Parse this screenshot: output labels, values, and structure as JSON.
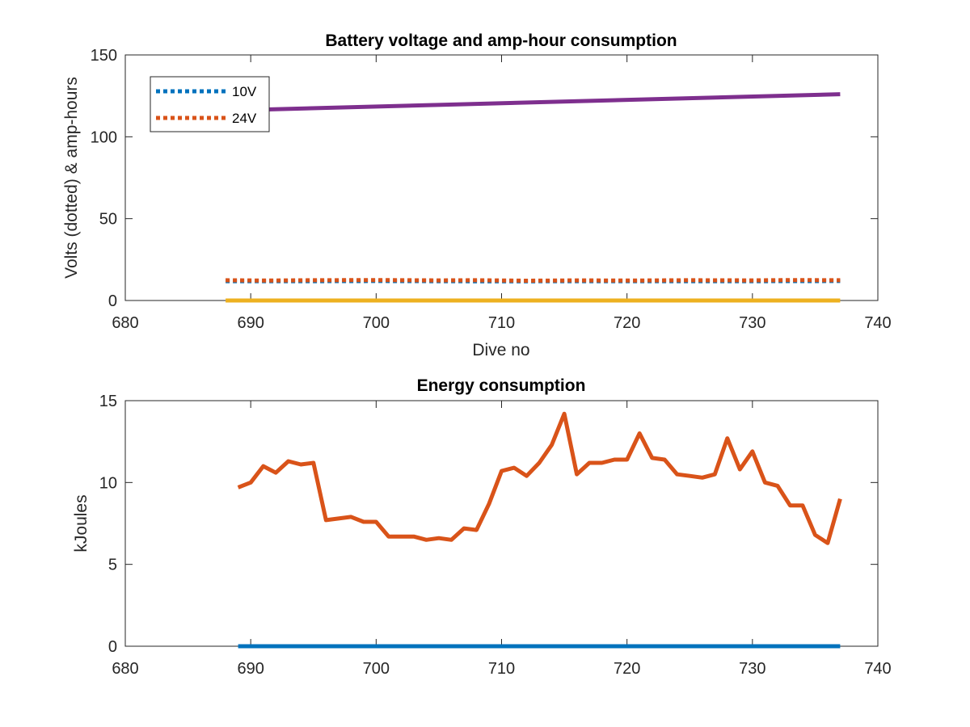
{
  "chart_data": [
    {
      "type": "line",
      "title": "Battery voltage and amp-hour consumption",
      "xlabel": "Dive no",
      "ylabel": "Volts (dotted) & amp-hours",
      "xlim": [
        680,
        740
      ],
      "ylim": [
        0,
        150
      ],
      "xticks": [
        680,
        690,
        700,
        710,
        720,
        730,
        740
      ],
      "yticks": [
        0,
        50,
        100,
        150
      ],
      "legend": {
        "placement": "top-left",
        "entries": [
          "10V",
          "24V"
        ]
      },
      "series": [
        {
          "name": "10V",
          "style": "dotted",
          "color": "#0072BD",
          "x": [
            688,
            695,
            700,
            705,
            710,
            715,
            720,
            725,
            730,
            737
          ],
          "y": [
            11.8,
            11.8,
            11.9,
            11.8,
            11.7,
            11.8,
            11.8,
            11.8,
            11.8,
            11.9
          ]
        },
        {
          "name": "24V",
          "style": "dotted",
          "color": "#D95319",
          "x": [
            688,
            691,
            695,
            700,
            705,
            708,
            712,
            716,
            720,
            725,
            730,
            733,
            737
          ],
          "y": [
            12.4,
            12.2,
            12.4,
            12.5,
            12.3,
            12.4,
            12.1,
            12.3,
            12.2,
            12.4,
            12.3,
            12.5,
            12.4
          ]
        },
        {
          "style": "solid",
          "color": "#7E2F8E",
          "x": [
            688,
            737
          ],
          "y": [
            116,
            126
          ]
        },
        {
          "style": "solid",
          "color": "#EDB120",
          "x": [
            688,
            737
          ],
          "y": [
            0,
            0
          ]
        }
      ]
    },
    {
      "type": "line",
      "title": "Energy consumption",
      "xlabel": "",
      "ylabel": "kJoules",
      "xlim": [
        680,
        740
      ],
      "ylim": [
        0,
        15
      ],
      "xticks": [
        680,
        690,
        700,
        710,
        720,
        730,
        740
      ],
      "yticks": [
        0,
        5,
        10,
        15
      ],
      "series": [
        {
          "style": "solid",
          "color": "#D95319",
          "x": [
            689,
            690,
            691,
            692,
            693,
            694,
            695,
            696,
            697,
            698,
            699,
            700,
            701,
            702,
            703,
            704,
            705,
            706,
            707,
            708,
            709,
            710,
            711,
            712,
            713,
            714,
            715,
            716,
            717,
            718,
            719,
            720,
            721,
            722,
            723,
            724,
            725,
            726,
            727,
            728,
            729,
            730,
            731,
            732,
            733,
            734,
            735,
            736,
            737
          ],
          "y": [
            9.7,
            10.0,
            11.0,
            10.6,
            11.3,
            11.1,
            11.2,
            7.7,
            7.8,
            7.9,
            7.6,
            7.6,
            6.7,
            6.7,
            6.7,
            6.5,
            6.6,
            6.5,
            7.2,
            7.1,
            8.7,
            10.7,
            10.9,
            10.4,
            11.2,
            12.3,
            14.2,
            10.5,
            11.2,
            11.2,
            11.4,
            11.4,
            13.0,
            11.5,
            11.4,
            10.5,
            10.4,
            10.3,
            10.5,
            12.7,
            10.8,
            11.9,
            10.0,
            9.8,
            8.6,
            8.6,
            6.8,
            6.3,
            9.0
          ]
        },
        {
          "style": "solid",
          "color": "#0072BD",
          "x": [
            689,
            737
          ],
          "y": [
            0,
            0
          ]
        }
      ]
    }
  ]
}
